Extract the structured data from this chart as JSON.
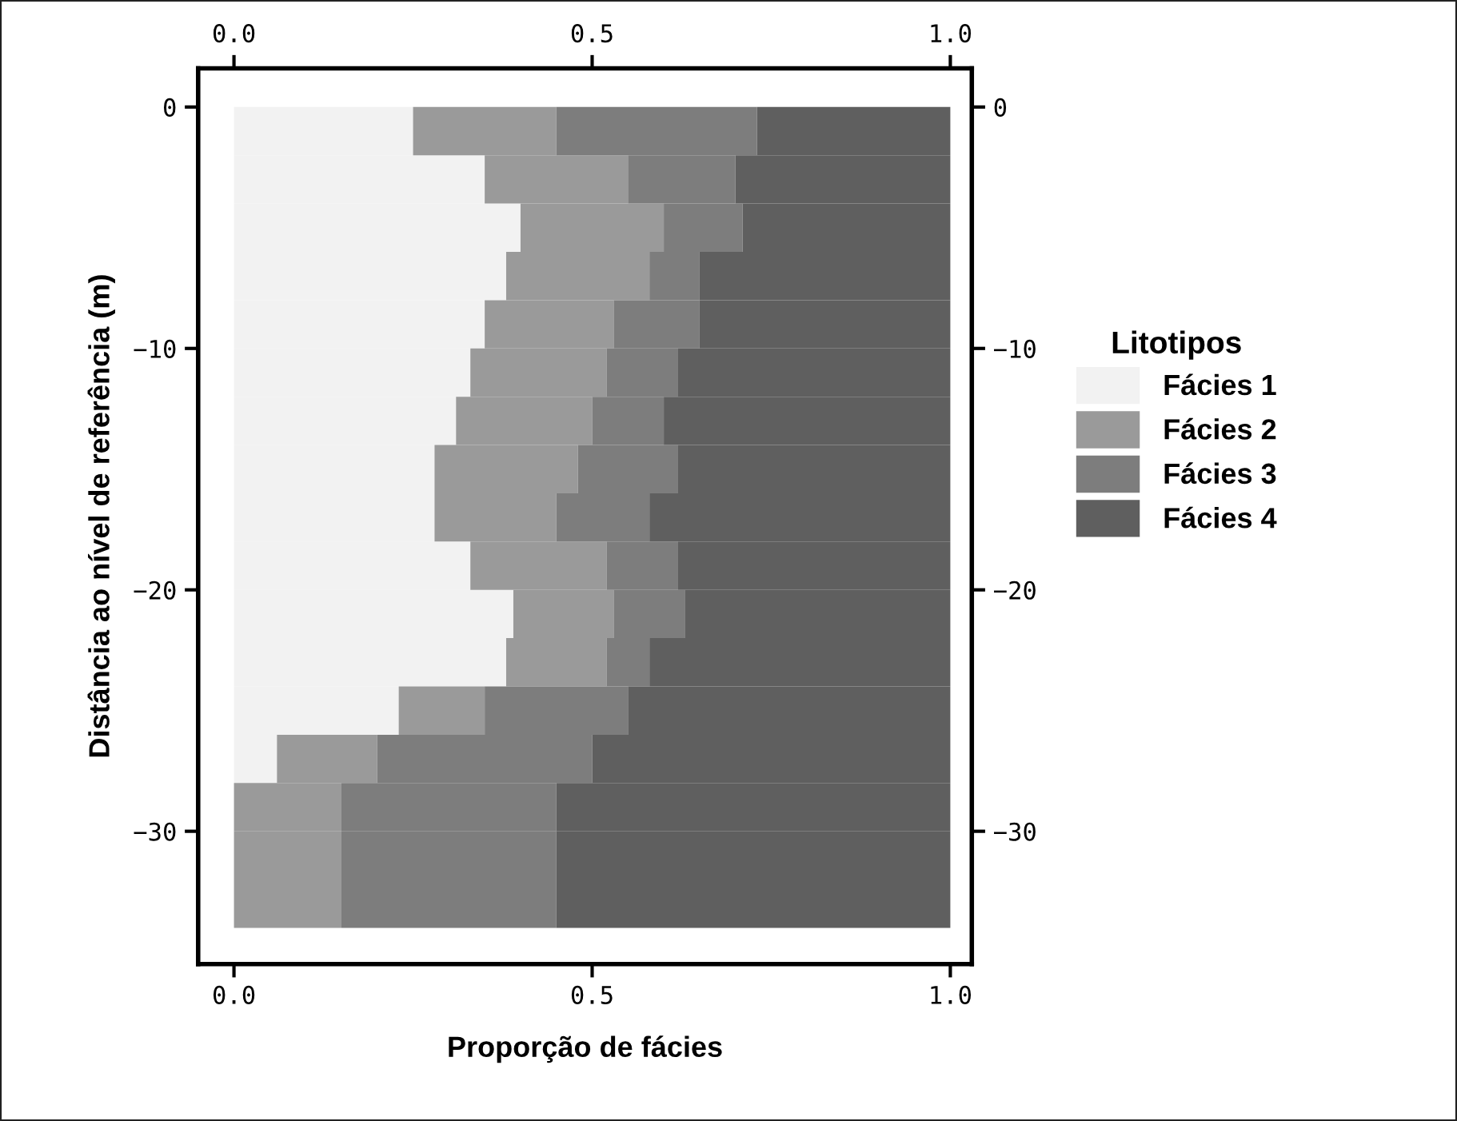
{
  "chart_data": {
    "type": "bar",
    "orientation": "horizontal",
    "stacked": true,
    "xlabel": "Proporção de fácies",
    "ylabel": "Distância ao nível de referência (m)",
    "legend_title": "Litotipos",
    "legend": "right",
    "x": [
      -1,
      -3,
      -5,
      -7,
      -9,
      -11,
      -13,
      -15,
      -17,
      -19,
      -21,
      -23,
      -25,
      -27,
      -29,
      -31,
      -33
    ],
    "series": [
      {
        "name": "Fácies 1",
        "color": "#f2f2f2",
        "values": [
          0.25,
          0.35,
          0.4,
          0.38,
          0.35,
          0.33,
          0.31,
          0.28,
          0.28,
          0.33,
          0.39,
          0.38,
          0.23,
          0.06,
          0,
          0,
          0
        ]
      },
      {
        "name": "Fácies 2",
        "color": "#9a9a9a",
        "values": [
          0.2,
          0.2,
          0.2,
          0.2,
          0.18,
          0.19,
          0.19,
          0.2,
          0.17,
          0.19,
          0.14,
          0.14,
          0.12,
          0.14,
          0.15,
          0.15,
          0.15
        ]
      },
      {
        "name": "Fácies 3",
        "color": "#7d7d7d",
        "values": [
          0.28,
          0.15,
          0.11,
          0.07,
          0.12,
          0.1,
          0.1,
          0.14,
          0.13,
          0.1,
          0.1,
          0.06,
          0.2,
          0.3,
          0.3,
          0.3,
          0.3
        ]
      },
      {
        "name": "Fácies 4",
        "color": "#5f5f5f",
        "values": [
          0.27,
          0.3,
          0.29,
          0.35,
          0.35,
          0.38,
          0.4,
          0.38,
          0.42,
          0.38,
          0.37,
          0.42,
          0.45,
          0.5,
          0.55,
          0.55,
          0.55
        ]
      }
    ],
    "xlim": [
      -0.05,
      1.03
    ],
    "xticks": [
      {
        "value": 0,
        "label": "0.0"
      },
      {
        "value": 0.5,
        "label": "0.5"
      },
      {
        "value": 1,
        "label": "1.0"
      }
    ],
    "x2lim": [
      -0.05,
      1.03
    ],
    "x2ticks": [
      {
        "value": 0,
        "label": "0.0"
      },
      {
        "value": 0.5,
        "label": "0.5"
      },
      {
        "value": 1,
        "label": "1.0"
      }
    ],
    "ylim": [
      -35.5,
      1.6
    ],
    "yticks": [
      0,
      -10,
      -20,
      -30
    ],
    "y2lim": [
      -35.5,
      1.6
    ],
    "y2ticks": [
      0,
      -10,
      -20,
      -30
    ],
    "grid": false
  }
}
